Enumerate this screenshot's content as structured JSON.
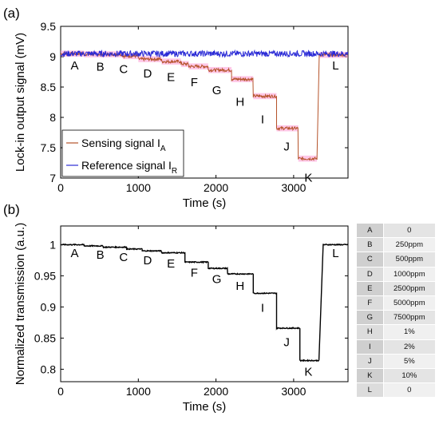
{
  "panels": {
    "a_label": "(a)",
    "b_label": "(b)"
  },
  "colors": {
    "sensing": "#b5532a",
    "sensing_band": "#ff9ad6",
    "reference": "#2b2bd6",
    "transmission": "#000000",
    "axis": "#000000"
  },
  "chart_data": [
    {
      "type": "line",
      "panel": "(a)",
      "xlabel": "Time (s)",
      "ylabel": "Lock-in output signal (mV)",
      "xlim": [
        0,
        3700
      ],
      "ylim": [
        7,
        9.5
      ],
      "xticks": [
        0,
        1000,
        2000,
        3000
      ],
      "yticks": [
        7,
        7.5,
        8,
        8.5,
        9,
        9.5
      ],
      "xtick_labels": [
        "0",
        "1000",
        "2000",
        "3000"
      ],
      "ytick_labels": [
        "7",
        "7.5",
        "8",
        "8.5",
        "9",
        "9.5"
      ],
      "grid": false,
      "legend": {
        "placement": "bottom-left",
        "entries": [
          {
            "base": "Sensing signal I",
            "sub": "A",
            "series": "sensing"
          },
          {
            "base": "Reference signal I",
            "sub": "R",
            "series": "reference"
          }
        ]
      },
      "series": [
        {
          "id": "sensing",
          "steps": [
            {
              "x0": 0,
              "x1": 300,
              "y": 9.05
            },
            {
              "x0": 300,
              "x1": 800,
              "y": 9.04
            },
            {
              "x0": 800,
              "x1": 1000,
              "y": 9.01
            },
            {
              "x0": 1000,
              "x1": 1300,
              "y": 8.96
            },
            {
              "x0": 1300,
              "x1": 1550,
              "y": 8.92
            },
            {
              "x0": 1550,
              "x1": 1650,
              "y": 8.88
            },
            {
              "x0": 1650,
              "x1": 1900,
              "y": 8.84
            },
            {
              "x0": 1900,
              "x1": 2200,
              "y": 8.78
            },
            {
              "x0": 2200,
              "x1": 2480,
              "y": 8.63
            },
            {
              "x0": 2480,
              "x1": 2780,
              "y": 8.35
            },
            {
              "x0": 2780,
              "x1": 3060,
              "y": 7.82
            },
            {
              "x0": 3060,
              "x1": 3300,
              "y": 7.32
            },
            {
              "x0": 3330,
              "x1": 3700,
              "y": 9.03
            }
          ],
          "noise": 0.025
        },
        {
          "id": "reference",
          "x_range": [
            0,
            3700
          ],
          "y": 9.05,
          "noise": 0.05
        }
      ],
      "annotations": [
        {
          "text": "A",
          "x": 180,
          "y": 8.87
        },
        {
          "text": "B",
          "x": 510,
          "y": 8.85
        },
        {
          "text": "C",
          "x": 810,
          "y": 8.81
        },
        {
          "text": "D",
          "x": 1120,
          "y": 8.74
        },
        {
          "text": "E",
          "x": 1420,
          "y": 8.68
        },
        {
          "text": "F",
          "x": 1720,
          "y": 8.59
        },
        {
          "text": "G",
          "x": 2010,
          "y": 8.46
        },
        {
          "text": "H",
          "x": 2310,
          "y": 8.27
        },
        {
          "text": "I",
          "x": 2600,
          "y": 7.98
        },
        {
          "text": "J",
          "x": 2910,
          "y": 7.53
        },
        {
          "text": "K",
          "x": 3190,
          "y": 7.02
        },
        {
          "text": "L",
          "x": 3540,
          "y": 8.87
        }
      ]
    },
    {
      "type": "line",
      "panel": "(b)",
      "xlabel": "Time (s)",
      "ylabel": "Normalized transmission (a.u.)",
      "xlim": [
        0,
        3700
      ],
      "ylim": [
        0.78,
        1.03
      ],
      "xticks": [
        0,
        1000,
        2000,
        3000
      ],
      "yticks": [
        0.8,
        0.85,
        0.9,
        0.95,
        1
      ],
      "xtick_labels": [
        "0",
        "1000",
        "2000",
        "3000"
      ],
      "ytick_labels": [
        "0.8",
        "0.85",
        "0.9",
        "0.95",
        "1"
      ],
      "grid": false,
      "series": [
        {
          "id": "transmission",
          "steps": [
            {
              "x0": 0,
              "x1": 300,
              "y": 1.0
            },
            {
              "x0": 300,
              "x1": 550,
              "y": 0.998
            },
            {
              "x0": 550,
              "x1": 850,
              "y": 0.996
            },
            {
              "x0": 850,
              "x1": 1050,
              "y": 0.993
            },
            {
              "x0": 1050,
              "x1": 1300,
              "y": 0.99
            },
            {
              "x0": 1300,
              "x1": 1600,
              "y": 0.987
            },
            {
              "x0": 1600,
              "x1": 1900,
              "y": 0.972
            },
            {
              "x0": 1900,
              "x1": 2150,
              "y": 0.962
            },
            {
              "x0": 2150,
              "x1": 2480,
              "y": 0.953
            },
            {
              "x0": 2480,
              "x1": 2780,
              "y": 0.922
            },
            {
              "x0": 2780,
              "x1": 3080,
              "y": 0.866
            },
            {
              "x0": 3080,
              "x1": 3330,
              "y": 0.814
            },
            {
              "x0": 3380,
              "x1": 3700,
              "y": 1.0
            }
          ],
          "noise": 0.0008
        }
      ],
      "annotations": [
        {
          "text": "A",
          "x": 180,
          "y": 0.988
        },
        {
          "text": "B",
          "x": 510,
          "y": 0.985
        },
        {
          "text": "C",
          "x": 810,
          "y": 0.981
        },
        {
          "text": "D",
          "x": 1120,
          "y": 0.976
        },
        {
          "text": "E",
          "x": 1420,
          "y": 0.971
        },
        {
          "text": "F",
          "x": 1720,
          "y": 0.956
        },
        {
          "text": "G",
          "x": 2010,
          "y": 0.946
        },
        {
          "text": "H",
          "x": 2310,
          "y": 0.935
        },
        {
          "text": "I",
          "x": 2600,
          "y": 0.9
        },
        {
          "text": "J",
          "x": 2910,
          "y": 0.845
        },
        {
          "text": "K",
          "x": 3190,
          "y": 0.797
        },
        {
          "text": "L",
          "x": 3540,
          "y": 0.988
        }
      ]
    }
  ],
  "table": {
    "rows": [
      {
        "key": "A",
        "value": "0"
      },
      {
        "key": "B",
        "value": "250ppm"
      },
      {
        "key": "C",
        "value": "500ppm"
      },
      {
        "key": "D",
        "value": "1000ppm"
      },
      {
        "key": "E",
        "value": "2500ppm"
      },
      {
        "key": "F",
        "value": "5000ppm"
      },
      {
        "key": "G",
        "value": "7500ppm"
      },
      {
        "key": "H",
        "value": "1%"
      },
      {
        "key": "I",
        "value": "2%"
      },
      {
        "key": "J",
        "value": "5%"
      },
      {
        "key": "K",
        "value": "10%"
      },
      {
        "key": "L",
        "value": "0"
      }
    ]
  }
}
